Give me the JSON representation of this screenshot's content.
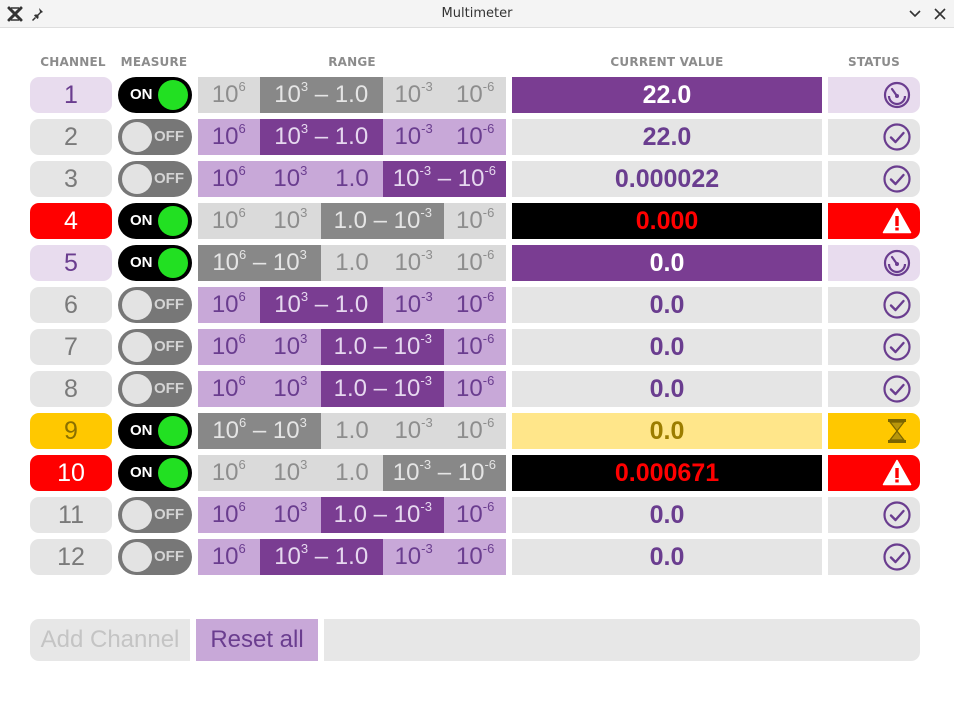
{
  "window": {
    "title": "Multimeter",
    "app_icon": "ctrlx-icon",
    "pin_icon": "pin-icon",
    "minimize_icon": "chevron-down-icon",
    "close_icon": "close-icon"
  },
  "headers": {
    "channel": "CHANNEL",
    "measure": "MEASURE",
    "range": "RANGE",
    "current_value": "CURRENT VALUE",
    "status": "STATUS"
  },
  "colors": {
    "accent_purple": "#7a3d92",
    "light_purple": "#c8a8d8",
    "error_red": "#ff0000",
    "waiting_yellow": "#ffc800",
    "switch_green": "#22e022"
  },
  "channels": [
    {
      "channel": "1",
      "measure": "ON",
      "range": "10^3 – 1.0",
      "value": "22.0",
      "state": "measuring",
      "status_icon": "gauge-icon"
    },
    {
      "channel": "2",
      "measure": "OFF",
      "range": "10^3 – 1.0",
      "value": "22.0",
      "state": "idle",
      "status_icon": "check-circle-icon"
    },
    {
      "channel": "3",
      "measure": "OFF",
      "range": "10^-3 – 10^-6",
      "value": "0.000022",
      "state": "idle",
      "status_icon": "check-circle-icon"
    },
    {
      "channel": "4",
      "measure": "ON",
      "range": "1.0 – 10^-3",
      "value": "0.000",
      "state": "error",
      "status_icon": "warning-icon"
    },
    {
      "channel": "5",
      "measure": "ON",
      "range": "10^6 – 10^3",
      "value": "0.0",
      "state": "measuring",
      "status_icon": "gauge-icon"
    },
    {
      "channel": "6",
      "measure": "OFF",
      "range": "10^3 – 1.0",
      "value": "0.0",
      "state": "idle",
      "status_icon": "check-circle-icon"
    },
    {
      "channel": "7",
      "measure": "OFF",
      "range": "1.0 – 10^-3",
      "value": "0.0",
      "state": "idle",
      "status_icon": "check-circle-icon"
    },
    {
      "channel": "8",
      "measure": "OFF",
      "range": "1.0 – 10^-3",
      "value": "0.0",
      "state": "idle",
      "status_icon": "check-circle-icon"
    },
    {
      "channel": "9",
      "measure": "ON",
      "range": "10^6 – 10^3",
      "value": "0.0",
      "state": "waiting",
      "status_icon": "hourglass-icon"
    },
    {
      "channel": "10",
      "measure": "ON",
      "range": "10^-3 – 10^-6",
      "value": "0.000671",
      "state": "error",
      "status_icon": "warning-icon"
    },
    {
      "channel": "11",
      "measure": "OFF",
      "range": "1.0 – 10^-3",
      "value": "0.0",
      "state": "idle",
      "status_icon": "check-circle-icon"
    },
    {
      "channel": "12",
      "measure": "OFF",
      "range": "10^3 – 1.0",
      "value": "0.0",
      "state": "idle",
      "status_icon": "check-circle-icon"
    }
  ],
  "range_options": [
    "10^6",
    "10^3",
    "1.0",
    "10^-3",
    "10^-6"
  ],
  "buttons": {
    "add_channel": "Add Channel",
    "reset_all": "Reset all"
  },
  "message_field": ""
}
